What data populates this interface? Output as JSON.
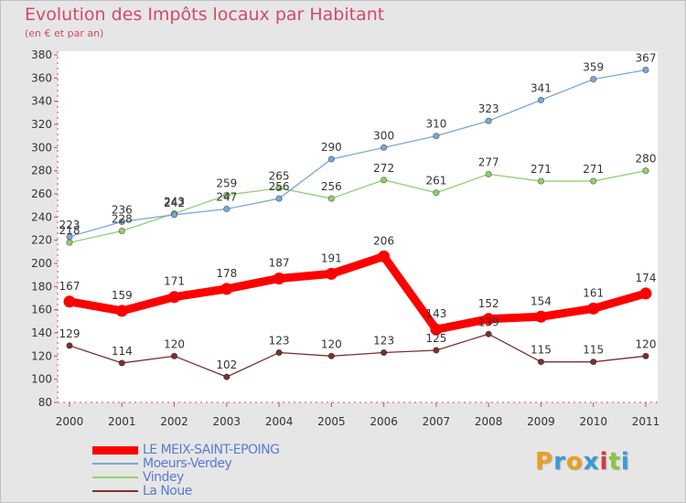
{
  "title": "Evolution des Impôts locaux par Habitant",
  "subtitle": "(en € et par an)",
  "logo": {
    "letters": [
      "P",
      "r",
      "o",
      "x",
      "i",
      "t",
      "i"
    ],
    "colors": [
      "#e8a020",
      "#3a9ad9",
      "#e8a020",
      "#3a9ad9",
      "#d23c3c",
      "#8cc63f",
      "#3a9ad9"
    ]
  },
  "chart_data": {
    "type": "line",
    "title": "Evolution des Impôts locaux par Habitant",
    "subtitle": "(en € et par an)",
    "x": [
      "2000",
      "2001",
      "2002",
      "2003",
      "2004",
      "2005",
      "2006",
      "2007",
      "2008",
      "2009",
      "2010",
      "2011"
    ],
    "ylim": [
      80,
      380
    ],
    "yticks": [
      80,
      100,
      120,
      140,
      160,
      180,
      200,
      220,
      240,
      260,
      280,
      300,
      320,
      340,
      360,
      380
    ],
    "grid": false,
    "legend_position": "bottom-left",
    "series": [
      {
        "name": "LE MEIX-SAINT-EPOING",
        "color": "#ff0000",
        "values": [
          167,
          159,
          171,
          178,
          187,
          191,
          206,
          143,
          152,
          154,
          161,
          174
        ]
      },
      {
        "name": "Moeurs-Verdey",
        "color": "#7aa7d8",
        "values": [
          223,
          236,
          242,
          247,
          256,
          290,
          300,
          310,
          323,
          341,
          359,
          367
        ]
      },
      {
        "name": "Vindey",
        "color": "#90d070",
        "values": [
          218,
          228,
          243,
          259,
          265,
          256,
          272,
          261,
          277,
          271,
          271,
          280
        ]
      },
      {
        "name": "La Noue",
        "color": "#7a3030",
        "values": [
          129,
          114,
          120,
          102,
          123,
          120,
          123,
          125,
          139,
          115,
          115,
          120
        ]
      }
    ]
  }
}
